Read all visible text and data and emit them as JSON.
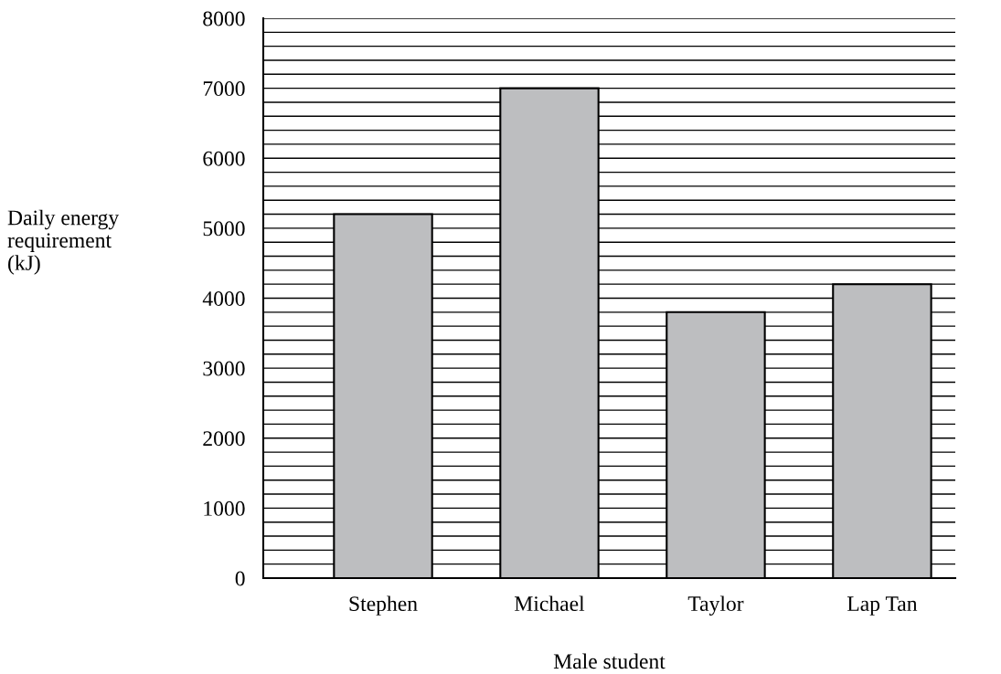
{
  "chart_data": {
    "type": "bar",
    "xlabel": "Male student",
    "ylabel": "Daily energy\nrequirement\n(kJ)",
    "categories": [
      "Stephen",
      "Michael",
      "Taylor",
      "Lap Tan"
    ],
    "values": [
      5200,
      7000,
      3800,
      4200
    ],
    "color": "#bdbec0",
    "ylim": [
      0,
      8000
    ],
    "yticks": [
      0,
      {
        "value": 200,
        "label": null
      },
      {
        "value": 400,
        "label": null
      },
      {
        "value": 600,
        "label": null
      },
      {
        "value": 800,
        "label": null
      },
      1000,
      {
        "value": 1200,
        "label": null
      },
      {
        "value": 1400,
        "label": null
      },
      {
        "value": 1600,
        "label": null
      },
      {
        "value": 1800,
        "label": null
      },
      2000,
      {
        "value": 2200,
        "label": null
      },
      {
        "value": 2400,
        "label": null
      },
      {
        "value": 2600,
        "label": null
      },
      {
        "value": 2800,
        "label": null
      },
      3000,
      {
        "value": 3200,
        "label": null
      },
      {
        "value": 3400,
        "label": null
      },
      {
        "value": 3600,
        "label": null
      },
      {
        "value": 3800,
        "label": null
      },
      4000,
      {
        "value": 4200,
        "label": null
      },
      {
        "value": 4400,
        "label": null
      },
      {
        "value": 4600,
        "label": null
      },
      {
        "value": 4800,
        "label": null
      },
      5000,
      {
        "value": 5200,
        "label": null
      },
      {
        "value": 5400,
        "label": null
      },
      {
        "value": 5600,
        "label": null
      },
      {
        "value": 5800,
        "label": null
      },
      6000,
      {
        "value": 6200,
        "label": null
      },
      {
        "value": 6400,
        "label": null
      },
      {
        "value": 6600,
        "label": null
      },
      {
        "value": 6800,
        "label": null
      },
      7000,
      {
        "value": 7200,
        "label": null
      },
      {
        "value": 7400,
        "label": null
      },
      {
        "value": 7600,
        "label": null
      },
      {
        "value": 7800,
        "label": null
      },
      8000
    ],
    "grid": "y"
  }
}
